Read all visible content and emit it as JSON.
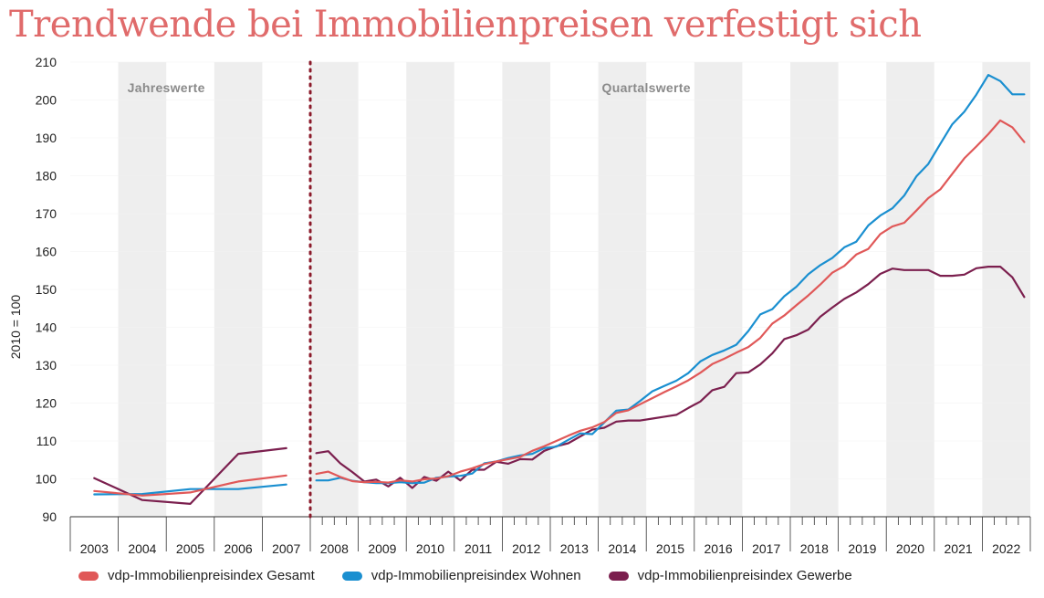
{
  "chart_data": {
    "type": "line",
    "title": "Trendwende bei Immobilienpreisen verfestigt sich",
    "ylabel": "2010 = 100",
    "ylim": [
      90,
      210
    ],
    "yticks": [
      90,
      100,
      110,
      120,
      130,
      140,
      150,
      160,
      170,
      180,
      190,
      200,
      210
    ],
    "years": [
      "2003",
      "2004",
      "2005",
      "2006",
      "2007",
      "2008",
      "2009",
      "2010",
      "2011",
      "2012",
      "2013",
      "2014",
      "2015",
      "2016",
      "2017",
      "2018",
      "2019",
      "2020",
      "2021",
      "2022"
    ],
    "period_labels": [
      "Jahreswerte",
      "Quartalswerte"
    ],
    "grid": "alternating vertical bands per year",
    "legend_position": "bottom",
    "annual": {
      "x": [
        2003,
        2004,
        2005,
        2006,
        2007
      ],
      "series": [
        {
          "name": "vdp-Immobilienpreisindex Gesamt",
          "color": "#e05858",
          "values": [
            96.8,
            95.6,
            96.4,
            99.3,
            100.9
          ]
        },
        {
          "name": "vdp-Immobilienpreisindex Wohnen",
          "color": "#1a8fd0",
          "values": [
            95.9,
            96.0,
            97.3,
            97.3,
            98.5
          ]
        },
        {
          "name": "vdp-Immobilienpreisindex Gewerbe",
          "color": "#7b1f4e",
          "values": [
            100.2,
            94.4,
            93.4,
            106.6,
            108.1
          ]
        }
      ]
    },
    "quarterly": {
      "x": [
        "2008Q1",
        "2008Q2",
        "2008Q3",
        "2008Q4",
        "2009Q1",
        "2009Q2",
        "2009Q3",
        "2009Q4",
        "2010Q1",
        "2010Q2",
        "2010Q3",
        "2010Q4",
        "2011Q1",
        "2011Q2",
        "2011Q3",
        "2011Q4",
        "2012Q1",
        "2012Q2",
        "2012Q3",
        "2012Q4",
        "2013Q1",
        "2013Q2",
        "2013Q3",
        "2013Q4",
        "2014Q1",
        "2014Q2",
        "2014Q3",
        "2014Q4",
        "2015Q1",
        "2015Q2",
        "2015Q3",
        "2015Q4",
        "2016Q1",
        "2016Q2",
        "2016Q3",
        "2016Q4",
        "2017Q1",
        "2017Q2",
        "2017Q3",
        "2017Q4",
        "2018Q1",
        "2018Q2",
        "2018Q3",
        "2018Q4",
        "2019Q1",
        "2019Q2",
        "2019Q3",
        "2019Q4",
        "2020Q1",
        "2020Q2",
        "2020Q3",
        "2020Q4",
        "2021Q1",
        "2021Q2",
        "2021Q3",
        "2021Q4",
        "2022Q1",
        "2022Q2",
        "2022Q3",
        "2022Q4"
      ],
      "series": [
        {
          "name": "vdp-Immobilienpreisindex Gesamt",
          "color": "#e05858",
          "values": [
            101.3,
            101.9,
            100.5,
            99.4,
            99.1,
            99.2,
            99.0,
            99.6,
            99.3,
            99.9,
            100.1,
            100.7,
            101.9,
            102.8,
            103.9,
            104.6,
            105.2,
            105.8,
            107.4,
            108.6,
            110.0,
            111.4,
            112.7,
            113.6,
            115.0,
            117.4,
            118.1,
            119.7,
            121.3,
            122.9,
            124.4,
            126.0,
            128.0,
            130.3,
            131.7,
            133.3,
            134.8,
            137.2,
            141.0,
            143.1,
            145.8,
            148.4,
            151.3,
            154.4,
            156.2,
            159.2,
            160.7,
            164.6,
            166.6,
            167.6,
            170.8,
            174.1,
            176.4,
            180.5,
            184.6,
            187.7,
            191.0,
            194.6,
            192.8,
            188.9
          ]
        },
        {
          "name": "vdp-Immobilienpreisindex Wohnen",
          "color": "#1a8fd0",
          "values": [
            99.6,
            99.6,
            100.3,
            99.5,
            99.1,
            98.9,
            98.9,
            99.1,
            98.9,
            99.0,
            100.3,
            100.6,
            100.8,
            101.4,
            104.1,
            104.6,
            105.5,
            106.2,
            106.6,
            108.1,
            108.5,
            110.3,
            112.0,
            111.8,
            114.9,
            118.0,
            118.3,
            120.6,
            123.1,
            124.5,
            125.9,
            127.9,
            131.0,
            132.7,
            133.9,
            135.4,
            139.0,
            143.4,
            144.8,
            148.2,
            150.7,
            154.0,
            156.4,
            158.3,
            161.1,
            162.6,
            166.9,
            169.5,
            171.4,
            174.8,
            179.8,
            183.1,
            188.4,
            193.6,
            196.9,
            201.4,
            206.6,
            205.0,
            201.5,
            201.5
          ]
        },
        {
          "name": "vdp-Immobilienpreisindex Gewerbe",
          "color": "#7b1f4e",
          "values": [
            106.8,
            107.3,
            104.1,
            101.8,
            99.3,
            99.8,
            98.0,
            100.3,
            97.6,
            100.5,
            99.5,
            101.9,
            99.6,
            102.4,
            102.4,
            104.5,
            104.0,
            105.2,
            105.1,
            107.4,
            108.6,
            109.4,
            111.2,
            113.0,
            113.5,
            115.1,
            115.4,
            115.4,
            115.9,
            116.4,
            116.9,
            118.7,
            120.4,
            123.4,
            124.3,
            127.9,
            128.1,
            130.2,
            133.1,
            136.9,
            137.9,
            139.4,
            142.8,
            145.2,
            147.5,
            149.2,
            151.4,
            154.1,
            155.5,
            155.1,
            155.1,
            155.1,
            153.6,
            153.6,
            153.9,
            155.6,
            156.0,
            156.0,
            153.2,
            148.0
          ]
        }
      ]
    }
  },
  "legend": {
    "items": [
      {
        "label": "vdp-Immobilienpreisindex Gesamt",
        "color": "#e05858"
      },
      {
        "label": "vdp-Immobilienpreisindex Wohnen",
        "color": "#1a8fd0"
      },
      {
        "label": "vdp-Immobilienpreisindex Gewerbe",
        "color": "#7b1f4e"
      }
    ]
  },
  "colors": {
    "title": "#e06b6b",
    "band": "#eeeeee",
    "divider": "#8b1a2a",
    "axis": "#333333"
  }
}
